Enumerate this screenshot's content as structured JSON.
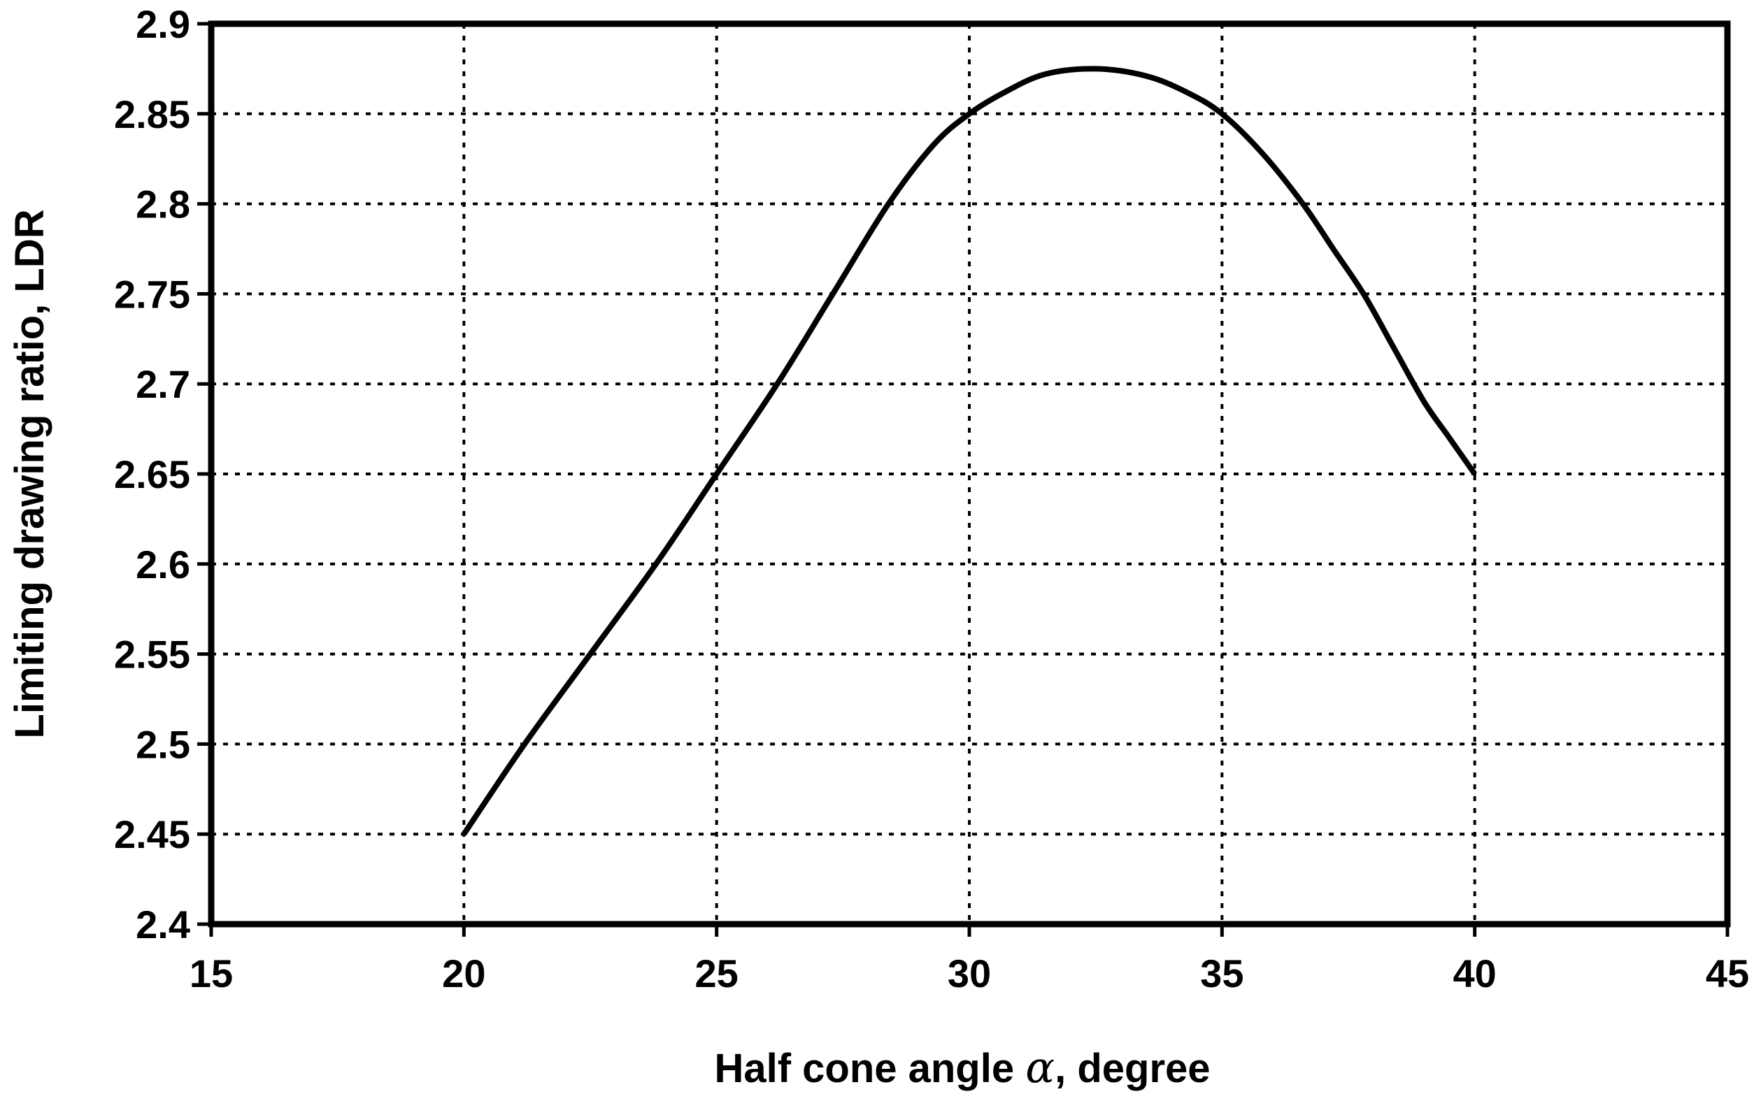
{
  "chart_data": {
    "type": "line",
    "xlabel": "Half cone angle α, degree",
    "xlabel_parts": {
      "before": "Half cone angle ",
      "symbol": "α",
      "after": ", degree"
    },
    "ylabel": "Limiting drawing ratio,  LDR",
    "xlim": [
      15,
      45
    ],
    "ylim": [
      2.4,
      2.9
    ],
    "x_ticks": [
      "15",
      "20",
      "25",
      "30",
      "35",
      "40",
      "45"
    ],
    "y_ticks": [
      "2.4",
      "2.45",
      "2.5",
      "2.55",
      "2.6",
      "2.65",
      "2.7",
      "2.75",
      "2.8",
      "2.85",
      "2.9"
    ],
    "grid": true,
    "grid_style": "dotted",
    "series": [
      {
        "color": "#000000",
        "x": [
          20,
          21.2,
          22.5,
          23.8,
          25,
          26.2,
          27.3,
          28.4,
          29.3,
          30,
          30.7,
          31.5,
          32.5,
          33.5,
          34.3,
          35,
          35.8,
          36.6,
          37.2,
          37.8,
          38.4,
          39,
          39.5,
          40
        ],
        "y": [
          2.45,
          2.5,
          2.55,
          2.6,
          2.65,
          2.7,
          2.75,
          2.8,
          2.833,
          2.85,
          2.862,
          2.872,
          2.875,
          2.871,
          2.862,
          2.85,
          2.828,
          2.8,
          2.775,
          2.75,
          2.72,
          2.69,
          2.67,
          2.65
        ]
      }
    ]
  }
}
